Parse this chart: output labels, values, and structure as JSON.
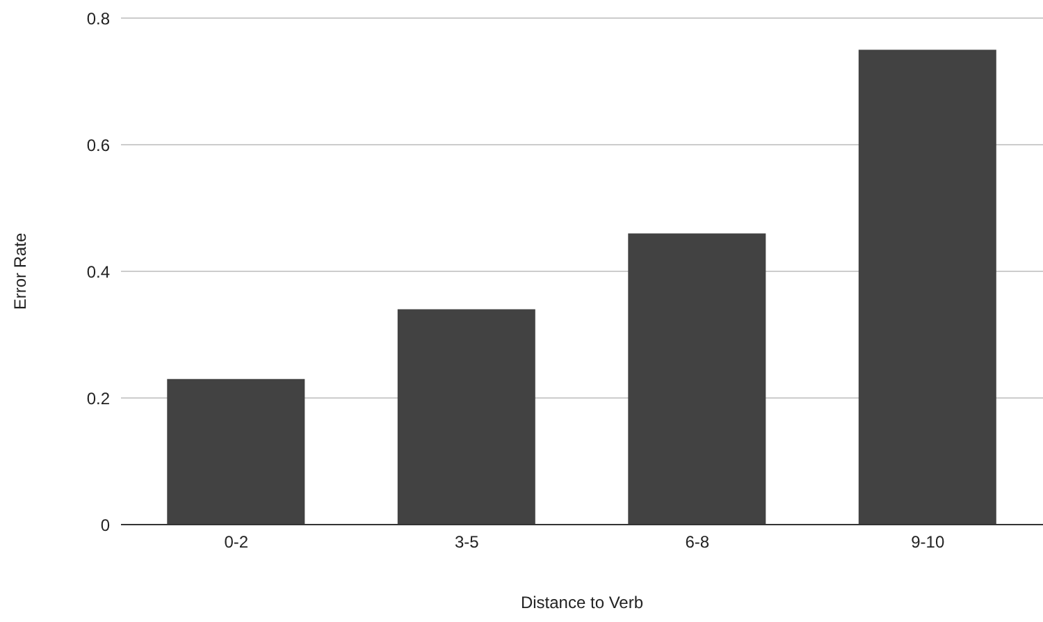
{
  "chart_data": {
    "type": "bar",
    "xlabel": "Distance to Verb",
    "ylabel": "Error Rate",
    "categories": [
      "0-2",
      "3-5",
      "6-8",
      "9-10"
    ],
    "values": [
      0.23,
      0.34,
      0.46,
      0.75
    ],
    "color": "#424242",
    "ylim": [
      0,
      0.8
    ],
    "yticks": [
      0,
      0.2,
      0.4,
      0.6,
      0.8
    ],
    "grid": "y",
    "legend": false
  }
}
